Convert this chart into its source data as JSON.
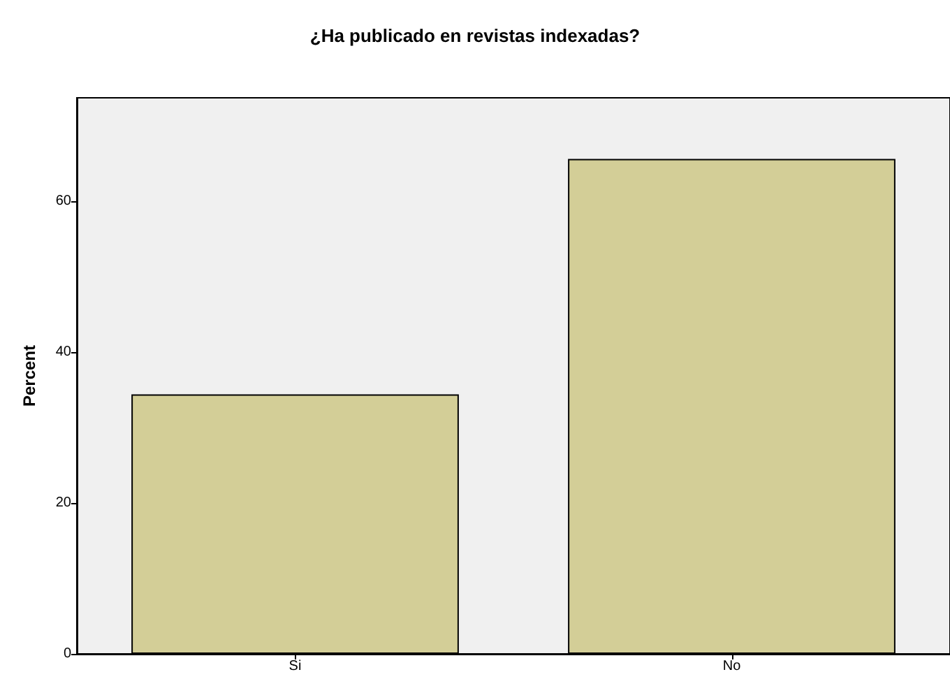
{
  "chart_data": {
    "type": "bar",
    "title": "¿Ha publicado en revistas indexadas?",
    "ylabel": "Percent",
    "categories": [
      "Si",
      "No"
    ],
    "values": [
      34.4,
      65.6
    ],
    "color": "#d3ce97",
    "ylim": [
      0,
      73.7
    ],
    "yticks": [
      0,
      20,
      40,
      60
    ],
    "grid": false
  }
}
